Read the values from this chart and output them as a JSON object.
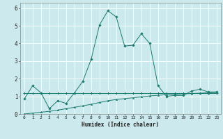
{
  "xlabel": "Humidex (Indice chaleur)",
  "xlim": [
    -0.5,
    23.5
  ],
  "ylim": [
    0,
    6.3
  ],
  "xticks": [
    0,
    1,
    2,
    3,
    4,
    5,
    6,
    7,
    8,
    9,
    10,
    11,
    12,
    13,
    14,
    15,
    16,
    17,
    18,
    19,
    20,
    21,
    22,
    23
  ],
  "yticks": [
    0,
    1,
    2,
    3,
    4,
    5,
    6
  ],
  "bg_color": "#cce9ed",
  "grid_color": "#ffffff",
  "line_color": "#1a7a6e",
  "series1_x": [
    0,
    1,
    2,
    3,
    4,
    5,
    6,
    7,
    8,
    9,
    10,
    11,
    12,
    13,
    14,
    15,
    16,
    17,
    18,
    19,
    20,
    21,
    22,
    23
  ],
  "series1_y": [
    0.85,
    1.6,
    1.2,
    0.3,
    0.75,
    0.6,
    1.2,
    1.85,
    3.1,
    5.05,
    5.85,
    5.5,
    3.85,
    3.9,
    4.55,
    4.0,
    1.6,
    1.0,
    1.05,
    1.05,
    1.3,
    1.4,
    1.25,
    1.25
  ],
  "series2_x": [
    0,
    1,
    2,
    3,
    4,
    5,
    6,
    7,
    8,
    9,
    10,
    11,
    12,
    13,
    14,
    15,
    16,
    17,
    18,
    19,
    20,
    21,
    22,
    23
  ],
  "series2_y": [
    1.2,
    1.2,
    1.2,
    1.2,
    1.2,
    1.2,
    1.2,
    1.2,
    1.2,
    1.2,
    1.2,
    1.2,
    1.2,
    1.2,
    1.2,
    1.2,
    1.2,
    1.2,
    1.2,
    1.2,
    1.2,
    1.2,
    1.2,
    1.2
  ],
  "series3_x": [
    0,
    1,
    2,
    3,
    4,
    5,
    6,
    7,
    8,
    9,
    10,
    11,
    12,
    13,
    14,
    15,
    16,
    17,
    18,
    19,
    20,
    21,
    22,
    23
  ],
  "series3_y": [
    0.0,
    0.05,
    0.1,
    0.15,
    0.22,
    0.3,
    0.38,
    0.46,
    0.55,
    0.65,
    0.75,
    0.82,
    0.87,
    0.92,
    0.97,
    1.02,
    1.06,
    1.1,
    1.12,
    1.14,
    1.16,
    1.18,
    1.2,
    1.22
  ]
}
